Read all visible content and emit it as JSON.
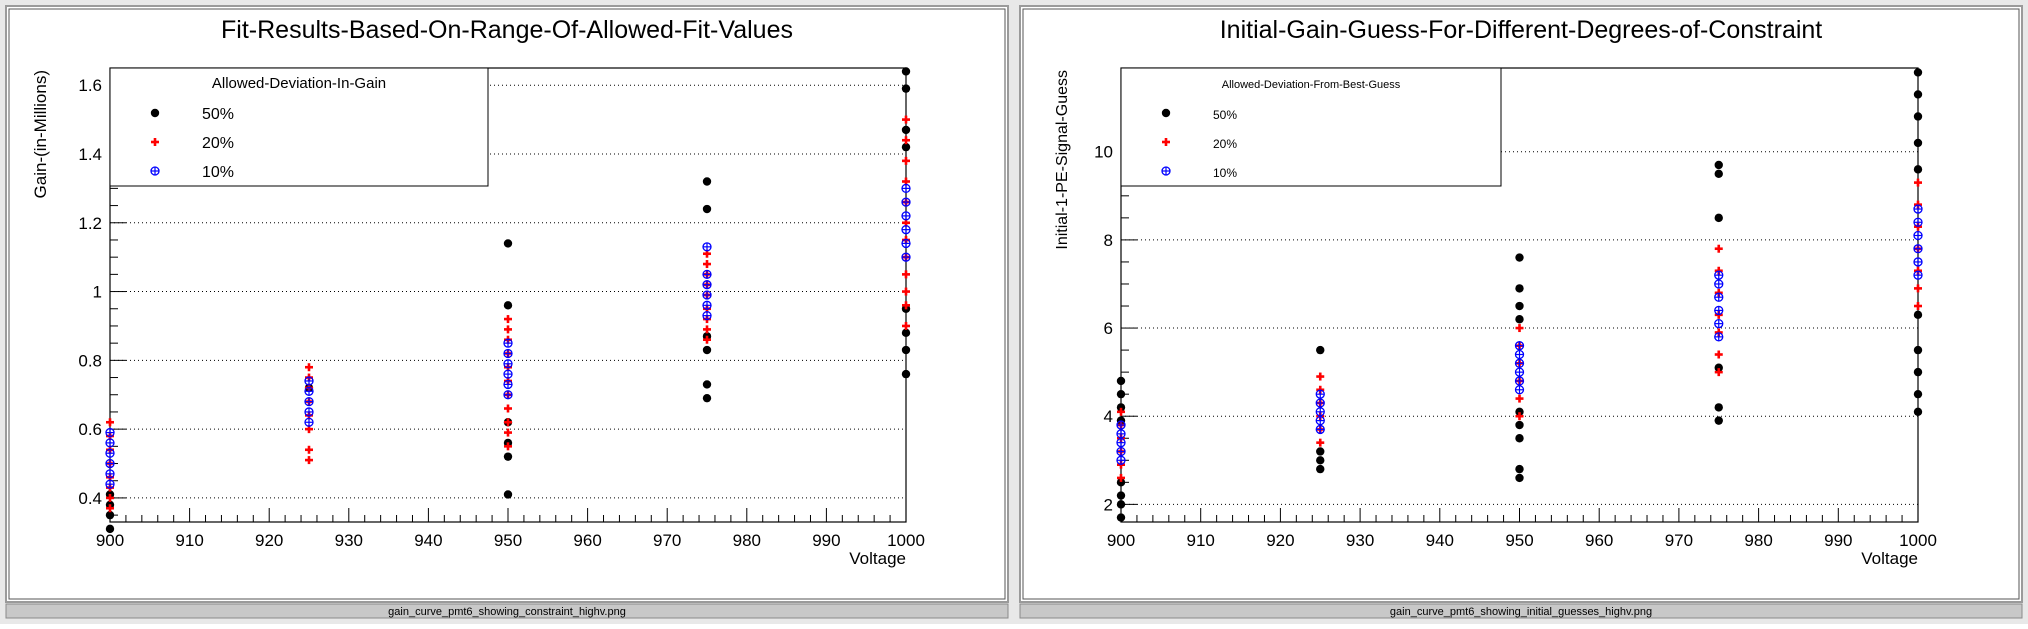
{
  "window": {
    "background_color": "#e8e8e8"
  },
  "panels": [
    {
      "filename": "gain_curve_pmt6_showing_constraint_highv.png",
      "chart_data": {
        "type": "scatter",
        "title": "Fit-Results-Based-On-Range-Of-Allowed-Fit-Values",
        "xlabel": "Voltage",
        "ylabel": "Gain-(in-Millions)",
        "xlim": [
          900,
          1000
        ],
        "ylim": [
          0.33,
          1.65
        ],
        "x_ticks": [
          900,
          910,
          920,
          930,
          940,
          950,
          960,
          970,
          980,
          990,
          1000
        ],
        "y_ticks": [
          0.4,
          0.6,
          0.8,
          1,
          1.2,
          1.4,
          1.6
        ],
        "y_tick_labels": [
          "0.4",
          "0.6",
          "0.8",
          "1",
          "1.2",
          "1.4",
          "1.6"
        ],
        "grid": "horizontal-dotted",
        "legend": {
          "title": "Allowed-Deviation-In-Gain",
          "placement": "top-left"
        },
        "series": [
          {
            "name": "50%",
            "marker": "circle",
            "color": "#000000",
            "points": [
              {
                "x": 900,
                "y": 0.31
              },
              {
                "x": 900,
                "y": 0.35
              },
              {
                "x": 900,
                "y": 0.38
              },
              {
                "x": 900,
                "y": 0.41
              },
              {
                "x": 925,
                "y": 0.72
              },
              {
                "x": 950,
                "y": 0.41
              },
              {
                "x": 950,
                "y": 0.52
              },
              {
                "x": 950,
                "y": 0.56
              },
              {
                "x": 950,
                "y": 0.62
              },
              {
                "x": 950,
                "y": 0.96
              },
              {
                "x": 950,
                "y": 1.14
              },
              {
                "x": 975,
                "y": 0.69
              },
              {
                "x": 975,
                "y": 0.73
              },
              {
                "x": 975,
                "y": 0.83
              },
              {
                "x": 975,
                "y": 0.87
              },
              {
                "x": 975,
                "y": 1.24
              },
              {
                "x": 975,
                "y": 1.32
              },
              {
                "x": 1000,
                "y": 0.76
              },
              {
                "x": 1000,
                "y": 0.83
              },
              {
                "x": 1000,
                "y": 0.88
              },
              {
                "x": 1000,
                "y": 0.95
              },
              {
                "x": 1000,
                "y": 1.42
              },
              {
                "x": 1000,
                "y": 1.47
              },
              {
                "x": 1000,
                "y": 1.59
              },
              {
                "x": 1000,
                "y": 1.64
              }
            ]
          },
          {
            "name": "20%",
            "marker": "cross",
            "color": "#ff0000",
            "points": [
              {
                "x": 900,
                "y": 0.37
              },
              {
                "x": 900,
                "y": 0.4
              },
              {
                "x": 900,
                "y": 0.43
              },
              {
                "x": 900,
                "y": 0.46
              },
              {
                "x": 900,
                "y": 0.5
              },
              {
                "x": 900,
                "y": 0.54
              },
              {
                "x": 900,
                "y": 0.58
              },
              {
                "x": 900,
                "y": 0.62
              },
              {
                "x": 925,
                "y": 0.51
              },
              {
                "x": 925,
                "y": 0.54
              },
              {
                "x": 925,
                "y": 0.6
              },
              {
                "x": 925,
                "y": 0.64
              },
              {
                "x": 925,
                "y": 0.68
              },
              {
                "x": 925,
                "y": 0.72
              },
              {
                "x": 925,
                "y": 0.75
              },
              {
                "x": 925,
                "y": 0.78
              },
              {
                "x": 950,
                "y": 0.55
              },
              {
                "x": 950,
                "y": 0.59
              },
              {
                "x": 950,
                "y": 0.62
              },
              {
                "x": 950,
                "y": 0.66
              },
              {
                "x": 950,
                "y": 0.7
              },
              {
                "x": 950,
                "y": 0.74
              },
              {
                "x": 950,
                "y": 0.78
              },
              {
                "x": 950,
                "y": 0.82
              },
              {
                "x": 950,
                "y": 0.86
              },
              {
                "x": 950,
                "y": 0.89
              },
              {
                "x": 950,
                "y": 0.92
              },
              {
                "x": 975,
                "y": 0.86
              },
              {
                "x": 975,
                "y": 0.89
              },
              {
                "x": 975,
                "y": 0.92
              },
              {
                "x": 975,
                "y": 0.95
              },
              {
                "x": 975,
                "y": 0.99
              },
              {
                "x": 975,
                "y": 1.02
              },
              {
                "x": 975,
                "y": 1.05
              },
              {
                "x": 975,
                "y": 1.08
              },
              {
                "x": 975,
                "y": 1.11
              },
              {
                "x": 1000,
                "y": 0.9
              },
              {
                "x": 1000,
                "y": 0.96
              },
              {
                "x": 1000,
                "y": 1.0
              },
              {
                "x": 1000,
                "y": 1.05
              },
              {
                "x": 1000,
                "y": 1.1
              },
              {
                "x": 1000,
                "y": 1.15
              },
              {
                "x": 1000,
                "y": 1.2
              },
              {
                "x": 1000,
                "y": 1.26
              },
              {
                "x": 1000,
                "y": 1.32
              },
              {
                "x": 1000,
                "y": 1.38
              },
              {
                "x": 1000,
                "y": 1.44
              },
              {
                "x": 1000,
                "y": 1.5
              }
            ]
          },
          {
            "name": "10%",
            "marker": "circle-plus",
            "color": "#0000ff",
            "points": [
              {
                "x": 900,
                "y": 0.44
              },
              {
                "x": 900,
                "y": 0.47
              },
              {
                "x": 900,
                "y": 0.5
              },
              {
                "x": 900,
                "y": 0.53
              },
              {
                "x": 900,
                "y": 0.56
              },
              {
                "x": 900,
                "y": 0.59
              },
              {
                "x": 925,
                "y": 0.62
              },
              {
                "x": 925,
                "y": 0.65
              },
              {
                "x": 925,
                "y": 0.68
              },
              {
                "x": 925,
                "y": 0.71
              },
              {
                "x": 925,
                "y": 0.74
              },
              {
                "x": 950,
                "y": 0.7
              },
              {
                "x": 950,
                "y": 0.73
              },
              {
                "x": 950,
                "y": 0.76
              },
              {
                "x": 950,
                "y": 0.79
              },
              {
                "x": 950,
                "y": 0.82
              },
              {
                "x": 950,
                "y": 0.85
              },
              {
                "x": 975,
                "y": 0.93
              },
              {
                "x": 975,
                "y": 0.96
              },
              {
                "x": 975,
                "y": 0.99
              },
              {
                "x": 975,
                "y": 1.02
              },
              {
                "x": 975,
                "y": 1.05
              },
              {
                "x": 975,
                "y": 1.13
              },
              {
                "x": 1000,
                "y": 1.1
              },
              {
                "x": 1000,
                "y": 1.14
              },
              {
                "x": 1000,
                "y": 1.18
              },
              {
                "x": 1000,
                "y": 1.22
              },
              {
                "x": 1000,
                "y": 1.26
              },
              {
                "x": 1000,
                "y": 1.3
              }
            ]
          }
        ]
      }
    },
    {
      "filename": "gain_curve_pmt6_showing_initial_guesses_highv.png",
      "chart_data": {
        "type": "scatter",
        "title": "Initial-Gain-Guess-For-Different-Degrees-of-Constraint",
        "xlabel": "Voltage",
        "ylabel": "Initial-1-PE-Signal-Guess",
        "xlim": [
          900,
          1000
        ],
        "ylim": [
          1.6,
          11.9
        ],
        "x_ticks": [
          900,
          910,
          920,
          930,
          940,
          950,
          960,
          970,
          980,
          990,
          1000
        ],
        "y_ticks": [
          2,
          4,
          6,
          8,
          10
        ],
        "y_tick_labels": [
          "2",
          "4",
          "6",
          "8",
          "10"
        ],
        "grid": "horizontal-dotted",
        "legend": {
          "title": "Allowed-Deviation-From-Best-Guess",
          "placement": "top-left"
        },
        "series": [
          {
            "name": "50%",
            "marker": "circle",
            "color": "#000000",
            "points": [
              {
                "x": 900,
                "y": 1.7
              },
              {
                "x": 900,
                "y": 2.0
              },
              {
                "x": 900,
                "y": 2.2
              },
              {
                "x": 900,
                "y": 2.5
              },
              {
                "x": 900,
                "y": 3.9
              },
              {
                "x": 900,
                "y": 4.2
              },
              {
                "x": 900,
                "y": 4.5
              },
              {
                "x": 900,
                "y": 4.8
              },
              {
                "x": 925,
                "y": 2.8
              },
              {
                "x": 925,
                "y": 3.0
              },
              {
                "x": 925,
                "y": 3.2
              },
              {
                "x": 925,
                "y": 5.5
              },
              {
                "x": 950,
                "y": 2.6
              },
              {
                "x": 950,
                "y": 2.8
              },
              {
                "x": 950,
                "y": 3.5
              },
              {
                "x": 950,
                "y": 3.8
              },
              {
                "x": 950,
                "y": 4.1
              },
              {
                "x": 950,
                "y": 6.2
              },
              {
                "x": 950,
                "y": 6.5
              },
              {
                "x": 950,
                "y": 6.9
              },
              {
                "x": 950,
                "y": 7.6
              },
              {
                "x": 975,
                "y": 3.9
              },
              {
                "x": 975,
                "y": 4.2
              },
              {
                "x": 975,
                "y": 5.1
              },
              {
                "x": 975,
                "y": 8.5
              },
              {
                "x": 975,
                "y": 9.5
              },
              {
                "x": 975,
                "y": 9.7
              },
              {
                "x": 1000,
                "y": 4.1
              },
              {
                "x": 1000,
                "y": 4.5
              },
              {
                "x": 1000,
                "y": 5.0
              },
              {
                "x": 1000,
                "y": 5.5
              },
              {
                "x": 1000,
                "y": 6.3
              },
              {
                "x": 1000,
                "y": 9.6
              },
              {
                "x": 1000,
                "y": 10.2
              },
              {
                "x": 1000,
                "y": 10.8
              },
              {
                "x": 1000,
                "y": 11.3
              },
              {
                "x": 1000,
                "y": 11.8
              }
            ]
          },
          {
            "name": "20%",
            "marker": "cross",
            "color": "#ff0000",
            "points": [
              {
                "x": 900,
                "y": 2.6
              },
              {
                "x": 900,
                "y": 2.9
              },
              {
                "x": 900,
                "y": 3.2
              },
              {
                "x": 900,
                "y": 3.5
              },
              {
                "x": 900,
                "y": 3.8
              },
              {
                "x": 900,
                "y": 4.1
              },
              {
                "x": 925,
                "y": 3.4
              },
              {
                "x": 925,
                "y": 3.7
              },
              {
                "x": 925,
                "y": 4.0
              },
              {
                "x": 925,
                "y": 4.3
              },
              {
                "x": 925,
                "y": 4.6
              },
              {
                "x": 925,
                "y": 4.9
              },
              {
                "x": 950,
                "y": 4.0
              },
              {
                "x": 950,
                "y": 4.4
              },
              {
                "x": 950,
                "y": 4.8
              },
              {
                "x": 950,
                "y": 5.2
              },
              {
                "x": 950,
                "y": 5.6
              },
              {
                "x": 950,
                "y": 6.0
              },
              {
                "x": 975,
                "y": 5.0
              },
              {
                "x": 975,
                "y": 5.4
              },
              {
                "x": 975,
                "y": 5.9
              },
              {
                "x": 975,
                "y": 6.3
              },
              {
                "x": 975,
                "y": 6.8
              },
              {
                "x": 975,
                "y": 7.3
              },
              {
                "x": 975,
                "y": 7.8
              },
              {
                "x": 1000,
                "y": 6.5
              },
              {
                "x": 1000,
                "y": 6.9
              },
              {
                "x": 1000,
                "y": 7.3
              },
              {
                "x": 1000,
                "y": 7.8
              },
              {
                "x": 1000,
                "y": 8.3
              },
              {
                "x": 1000,
                "y": 8.8
              },
              {
                "x": 1000,
                "y": 9.3
              }
            ]
          },
          {
            "name": "10%",
            "marker": "circle-plus",
            "color": "#0000ff",
            "points": [
              {
                "x": 900,
                "y": 3.0
              },
              {
                "x": 900,
                "y": 3.2
              },
              {
                "x": 900,
                "y": 3.4
              },
              {
                "x": 900,
                "y": 3.6
              },
              {
                "x": 900,
                "y": 3.8
              },
              {
                "x": 925,
                "y": 3.7
              },
              {
                "x": 925,
                "y": 3.9
              },
              {
                "x": 925,
                "y": 4.1
              },
              {
                "x": 925,
                "y": 4.3
              },
              {
                "x": 925,
                "y": 4.5
              },
              {
                "x": 950,
                "y": 4.6
              },
              {
                "x": 950,
                "y": 4.8
              },
              {
                "x": 950,
                "y": 5.0
              },
              {
                "x": 950,
                "y": 5.2
              },
              {
                "x": 950,
                "y": 5.4
              },
              {
                "x": 950,
                "y": 5.6
              },
              {
                "x": 975,
                "y": 5.8
              },
              {
                "x": 975,
                "y": 6.1
              },
              {
                "x": 975,
                "y": 6.4
              },
              {
                "x": 975,
                "y": 6.7
              },
              {
                "x": 975,
                "y": 7.0
              },
              {
                "x": 975,
                "y": 7.2
              },
              {
                "x": 1000,
                "y": 7.2
              },
              {
                "x": 1000,
                "y": 7.5
              },
              {
                "x": 1000,
                "y": 7.8
              },
              {
                "x": 1000,
                "y": 8.1
              },
              {
                "x": 1000,
                "y": 8.4
              },
              {
                "x": 1000,
                "y": 8.7
              }
            ]
          }
        ]
      }
    }
  ]
}
